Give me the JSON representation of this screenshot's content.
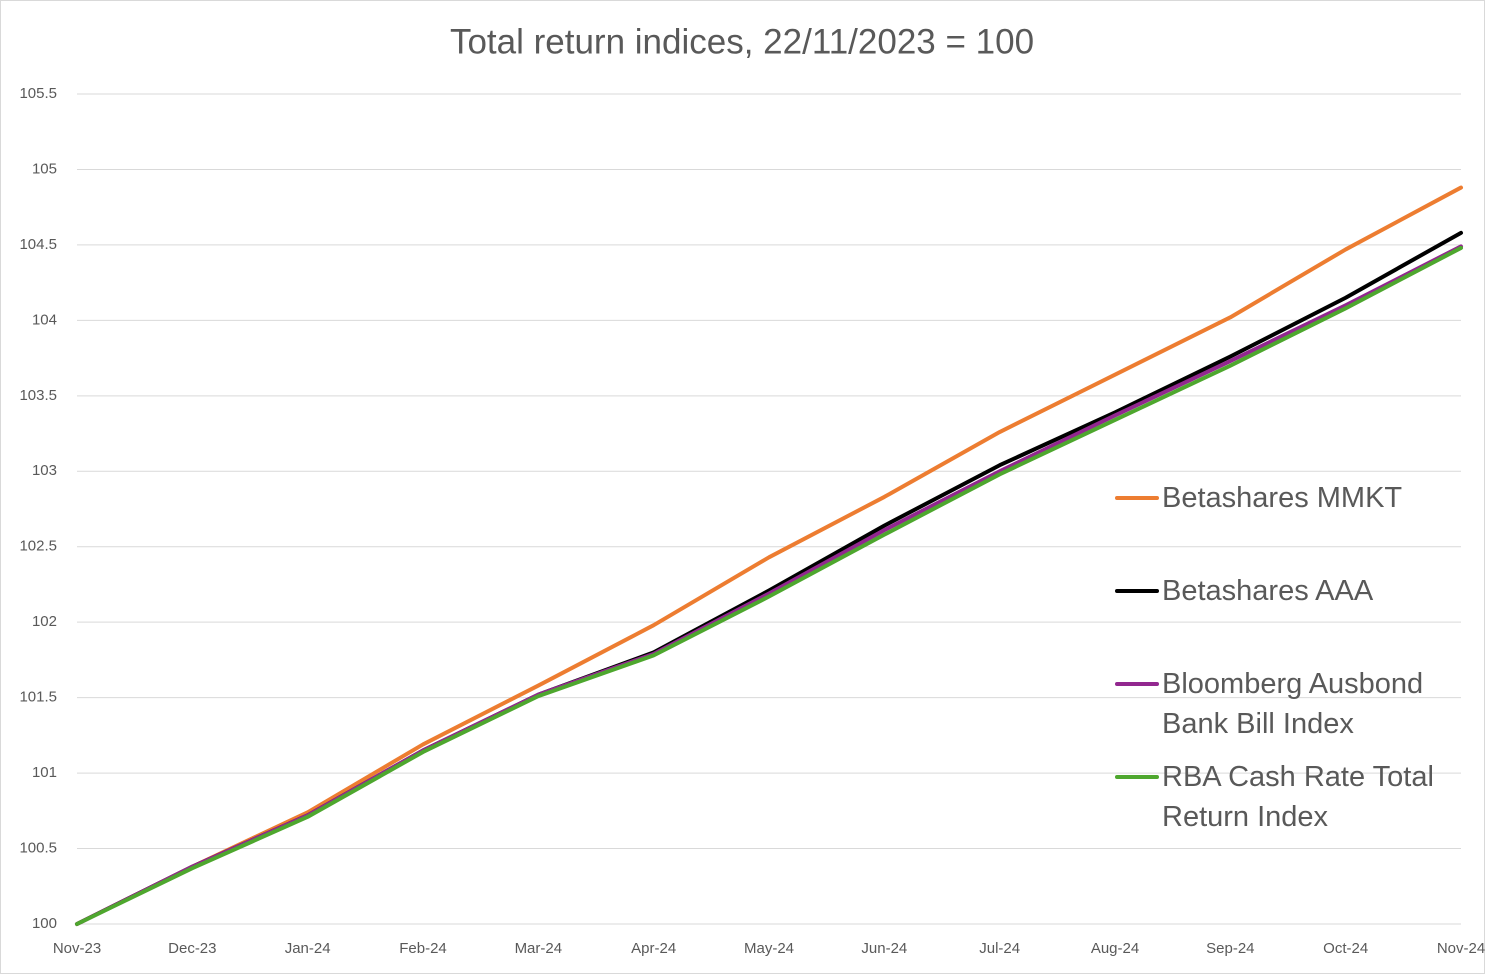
{
  "chart_data": {
    "type": "line",
    "title": "Total return indices, 22/11/2023 = 100",
    "categories": [
      "Nov-23",
      "Dec-23",
      "Jan-24",
      "Feb-24",
      "Mar-24",
      "Apr-24",
      "May-24",
      "Jun-24",
      "Jul-24",
      "Aug-24",
      "Sep-24",
      "Oct-24",
      "Nov-24"
    ],
    "series": [
      {
        "name": "Betashares MMKT",
        "color": "#ed7d31",
        "values": [
          100,
          100.38,
          100.74,
          101.19,
          101.58,
          101.98,
          102.43,
          102.83,
          103.26,
          103.64,
          104.02,
          104.47,
          104.88
        ]
      },
      {
        "name": "Betashares AAA",
        "color": "#000000",
        "values": [
          100,
          100.38,
          100.72,
          101.15,
          101.52,
          101.8,
          102.21,
          102.64,
          103.04,
          103.39,
          103.76,
          104.15,
          104.58
        ]
      },
      {
        "name": "Bloomberg Ausbond Bank Bill Index",
        "color": "#92278f",
        "values": [
          100,
          100.38,
          100.72,
          101.15,
          101.52,
          101.79,
          102.19,
          102.61,
          103.0,
          103.37,
          103.73,
          104.1,
          104.49
        ]
      },
      {
        "name": "RBA Cash Rate Total Return Index",
        "color": "#4ea72e",
        "values": [
          100,
          100.37,
          100.71,
          101.14,
          101.51,
          101.78,
          102.17,
          102.58,
          102.98,
          103.34,
          103.7,
          104.08,
          104.48
        ]
      }
    ],
    "ylim": [
      100,
      105.5
    ],
    "yticks": [
      100,
      100.5,
      101,
      101.5,
      102,
      102.5,
      103,
      103.5,
      104,
      104.5,
      105,
      105.5
    ],
    "grid": true,
    "legend": "right"
  }
}
